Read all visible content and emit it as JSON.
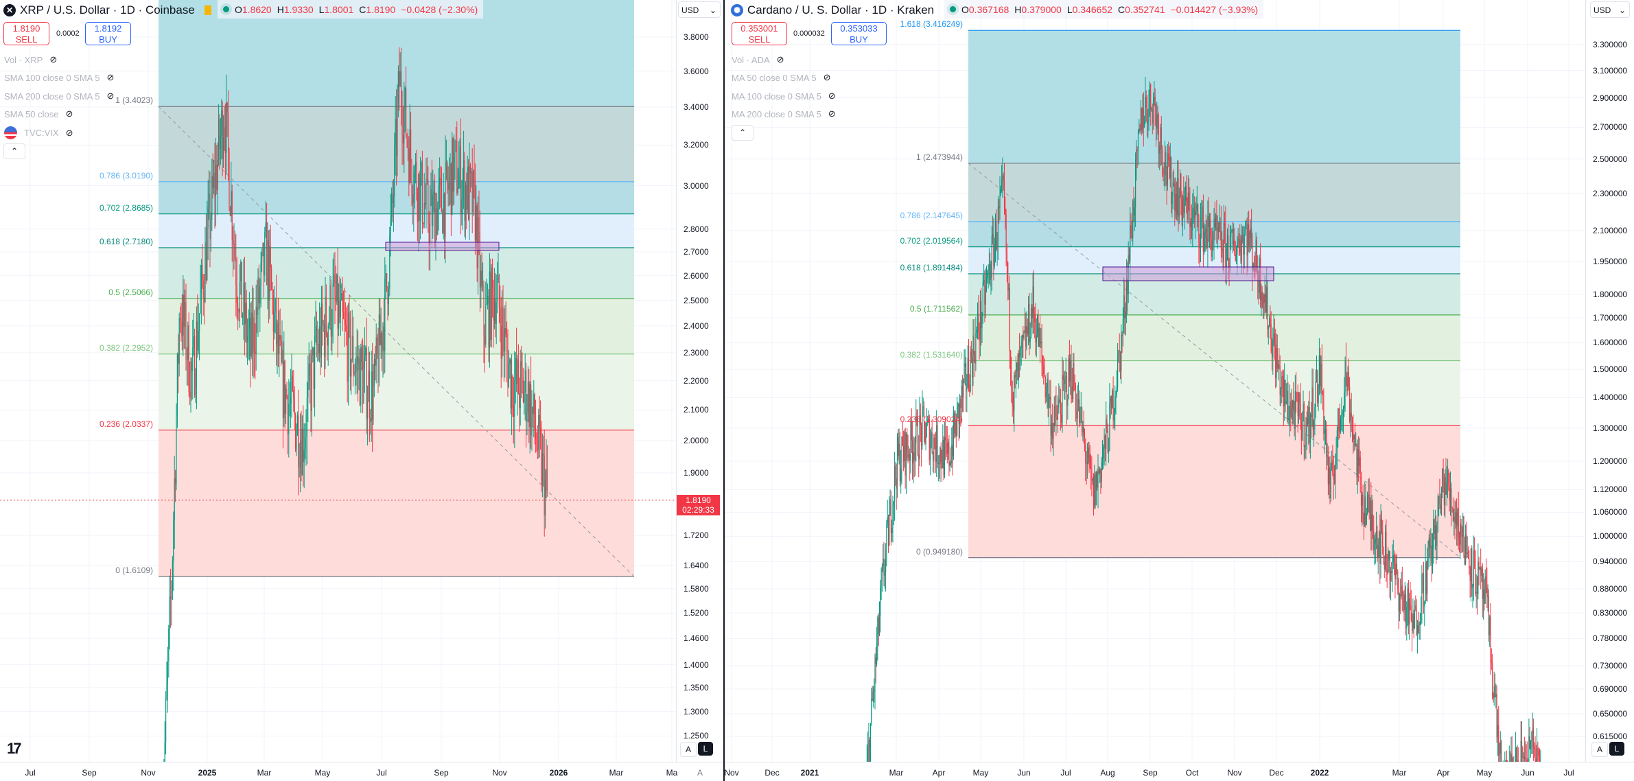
{
  "colors": {
    "up": "#089981",
    "down": "#f23645",
    "accent": "#2962ff"
  },
  "left": {
    "title": "XRP / U.S. Dollar · 1D · Coinbase",
    "symbol_icon": "xrp-logo-icon",
    "ohlc": {
      "o_label": "O",
      "o": "1.8620",
      "h_label": "H",
      "h": "1.9330",
      "l_label": "L",
      "l": "1.8001",
      "c_label": "C",
      "c": "1.8190",
      "change": "−0.0428 (−2.30%)"
    },
    "sell": {
      "price": "1.8190",
      "label": "SELL"
    },
    "buy": {
      "price": "1.8192",
      "label": "BUY"
    },
    "spread": "0.0002",
    "indicators": [
      "Vol · XRP",
      "SMA 100 close 0 SMA 5",
      "SMA 200 close 0 SMA 5",
      "SMA 50 close",
      "TVC:VIX"
    ],
    "currency": "USD",
    "price_ticks": [
      "3.8000",
      "3.6000",
      "3.4000",
      "3.2000",
      "3.0000",
      "2.8000",
      "2.7000",
      "2.6000",
      "2.5000",
      "2.4000",
      "2.3000",
      "2.2000",
      "2.1000",
      "2.0000",
      "1.9000",
      "1.7200",
      "1.6400",
      "1.5800",
      "1.5200",
      "1.4600",
      "1.4000",
      "1.3500",
      "1.3000",
      "1.2500"
    ],
    "last_price": "1.8190",
    "countdown": "02:29:33",
    "fib": [
      {
        "level": "1",
        "price": "3.4023",
        "label": "1 (3.4023)",
        "color": "#787b86"
      },
      {
        "level": "0.786",
        "price": "3.0190",
        "label": "0.786 (3.0190)",
        "color": "#64b5f6"
      },
      {
        "level": "0.702",
        "price": "2.8685",
        "label": "0.702 (2.8685)",
        "color": "#089981"
      },
      {
        "level": "0.618",
        "price": "2.7180",
        "label": "0.618 (2.7180)",
        "color": "#00897b"
      },
      {
        "level": "0.5",
        "price": "2.5066",
        "label": "0.5 (2.5066)",
        "color": "#4caf50"
      },
      {
        "level": "0.382",
        "price": "2.2952",
        "label": "0.382 (2.2952)",
        "color": "#81c784"
      },
      {
        "level": "0.236",
        "price": "2.0337",
        "label": "0.236 (2.0337)",
        "color": "#f23645"
      },
      {
        "level": "0",
        "price": "1.6109",
        "label": "0 (1.6109)",
        "color": "#787b86"
      }
    ],
    "time_labels": [
      {
        "t": "Jul"
      },
      {
        "t": "Sep"
      },
      {
        "t": "Nov"
      },
      {
        "t": "2025",
        "bold": true
      },
      {
        "t": "Mar"
      },
      {
        "t": "May"
      },
      {
        "t": "Jul"
      },
      {
        "t": "Sep"
      },
      {
        "t": "Nov"
      },
      {
        "t": "2026",
        "bold": true
      },
      {
        "t": "Mar"
      },
      {
        "t": "Ma"
      }
    ],
    "auto_label": "A",
    "log_label": "L"
  },
  "right": {
    "title": "Cardano / U. S. Dollar · 1D · Kraken",
    "symbol_icon": "cardano-logo-icon",
    "ohlc": {
      "o_label": "O",
      "o": "0.367168",
      "h_label": "H",
      "h": "0.379000",
      "l_label": "L",
      "l": "0.346652",
      "c_label": "C",
      "c": "0.352741",
      "change": "−0.014427 (−3.93%)"
    },
    "sell": {
      "price": "0.353001",
      "label": "SELL"
    },
    "buy": {
      "price": "0.353033",
      "label": "BUY"
    },
    "spread": "0.000032",
    "indicators": [
      "Vol · ADA",
      "MA 50 close 0 SMA 5",
      "MA 100 close 0 SMA 5",
      "MA 200 close 0 SMA 5"
    ],
    "currency": "USD",
    "price_ticks": [
      "3.300000",
      "3.100000",
      "2.900000",
      "2.700000",
      "2.500000",
      "2.300000",
      "2.100000",
      "1.950000",
      "1.800000",
      "1.700000",
      "1.600000",
      "1.500000",
      "1.400000",
      "1.300000",
      "1.200000",
      "1.120000",
      "1.060000",
      "1.000000",
      "0.940000",
      "0.880000",
      "0.830000",
      "0.780000",
      "0.730000",
      "0.690000",
      "0.650000",
      "0.615000"
    ],
    "fib": [
      {
        "level": "1.618",
        "price": "3.416249",
        "label": "1.618 (3.416249)",
        "color": "#2196f3"
      },
      {
        "level": "1",
        "price": "2.473944",
        "label": "1 (2.473944)",
        "color": "#787b86"
      },
      {
        "level": "0.786",
        "price": "2.147645",
        "label": "0.786 (2.147645)",
        "color": "#64b5f6"
      },
      {
        "level": "0.702",
        "price": "2.019564",
        "label": "0.702 (2.019564)",
        "color": "#089981"
      },
      {
        "level": "0.618",
        "price": "1.891484",
        "label": "0.618 (1.891484)",
        "color": "#00897b"
      },
      {
        "level": "0.5",
        "price": "1.711562",
        "label": "0.5 (1.711562)",
        "color": "#4caf50"
      },
      {
        "level": "0.382",
        "price": "1.531640",
        "label": "0.382 (1.531640)",
        "color": "#81c784"
      },
      {
        "level": "0.236",
        "price": "1.309024",
        "label": "0.236 (1.309024)",
        "color": "#f23645"
      },
      {
        "level": "0",
        "price": "0.949180",
        "label": "0 (0.949180)",
        "color": "#787b86"
      }
    ],
    "time_labels": [
      {
        "t": "Nov"
      },
      {
        "t": "Dec"
      },
      {
        "t": "2021",
        "bold": true
      },
      {
        "t": "Mar"
      },
      {
        "t": "Apr"
      },
      {
        "t": "May"
      },
      {
        "t": "Jun"
      },
      {
        "t": "Jul"
      },
      {
        "t": "Aug"
      },
      {
        "t": "Sep"
      },
      {
        "t": "Oct"
      },
      {
        "t": "Nov"
      },
      {
        "t": "Dec"
      },
      {
        "t": "2022",
        "bold": true
      },
      {
        "t": "Mar"
      },
      {
        "t": "Apr"
      },
      {
        "t": "May"
      },
      {
        "t": "Jun"
      },
      {
        "t": "Jul"
      }
    ],
    "auto_label": "A",
    "log_label": "L"
  }
}
